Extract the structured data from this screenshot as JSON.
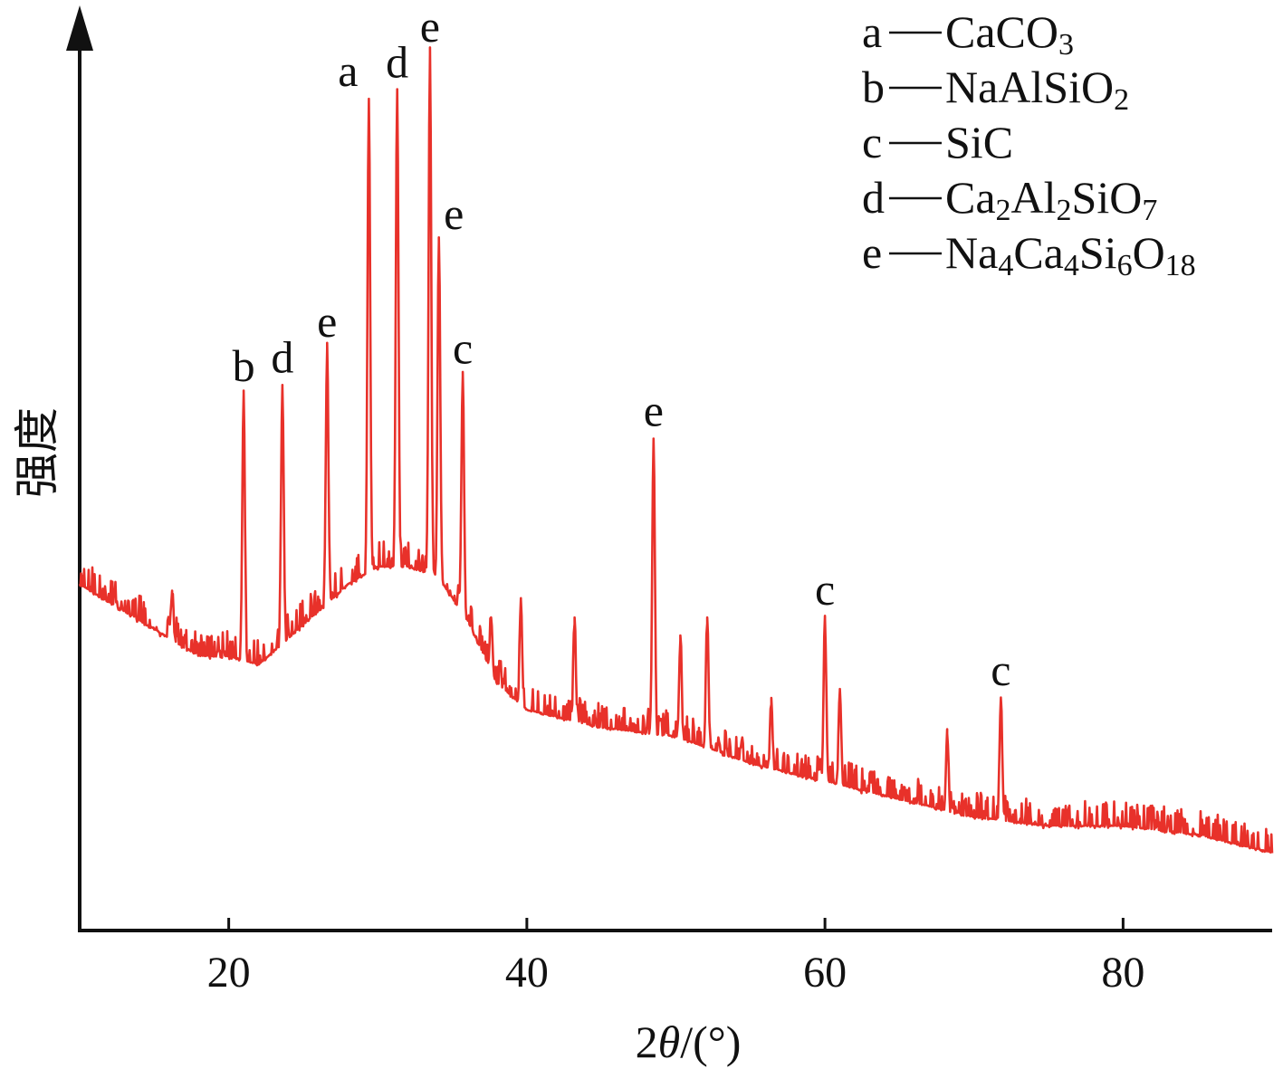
{
  "chart_data": {
    "type": "line",
    "xlabel": "2θ/(°)",
    "xlabel_parts": {
      "prefix": "2",
      "theta": "θ",
      "suffix": "/(°)"
    },
    "ylabel": "强度",
    "xlim": [
      10,
      90
    ],
    "ylim": [
      0,
      100
    ],
    "xticks": [
      20,
      40,
      60,
      80
    ],
    "grid": false,
    "line_color": "#e8312a",
    "legend_position": "top-right",
    "legend": [
      {
        "code": "a",
        "text": "a—CaCO3",
        "parts": [
          [
            "CaCO",
            false
          ],
          [
            "3",
            true
          ]
        ]
      },
      {
        "code": "b",
        "text": "b—NaAlSiO2",
        "parts": [
          [
            "NaAlSiO",
            false
          ],
          [
            "2",
            true
          ]
        ]
      },
      {
        "code": "c",
        "text": "c—SiC",
        "parts": [
          [
            "SiC",
            false
          ]
        ]
      },
      {
        "code": "d",
        "text": "d—Ca2Al2SiO7",
        "parts": [
          [
            "Ca",
            false
          ],
          [
            "2",
            true
          ],
          [
            "Al",
            false
          ],
          [
            "2",
            true
          ],
          [
            "SiO",
            false
          ],
          [
            "7",
            true
          ]
        ]
      },
      {
        "code": "e",
        "text": "e—Na4Ca4Si6O18",
        "parts": [
          [
            "Na",
            false
          ],
          [
            "4",
            true
          ],
          [
            "Ca",
            false
          ],
          [
            "4",
            true
          ],
          [
            "Si",
            false
          ],
          [
            "6",
            true
          ],
          [
            "O",
            false
          ],
          [
            "18",
            true
          ]
        ]
      }
    ],
    "baseline": [
      [
        10,
        38
      ],
      [
        14,
        34
      ],
      [
        18,
        30
      ],
      [
        20,
        30
      ],
      [
        22,
        29
      ],
      [
        24,
        32
      ],
      [
        26,
        35
      ],
      [
        28,
        38
      ],
      [
        30,
        40
      ],
      [
        32,
        40
      ],
      [
        34,
        39
      ],
      [
        36,
        34
      ],
      [
        38,
        27
      ],
      [
        40,
        24
      ],
      [
        45,
        22
      ],
      [
        50,
        21
      ],
      [
        55,
        18
      ],
      [
        60,
        16
      ],
      [
        65,
        14
      ],
      [
        70,
        12
      ],
      [
        75,
        11
      ],
      [
        80,
        11
      ],
      [
        85,
        10
      ],
      [
        90,
        8
      ]
    ],
    "peaks": [
      {
        "x": 21.0,
        "y": 60,
        "label": "b"
      },
      {
        "x": 23.6,
        "y": 61,
        "label": "d"
      },
      {
        "x": 26.6,
        "y": 65,
        "label": "e"
      },
      {
        "x": 29.4,
        "y": 93,
        "label": "a",
        "label_x": 28.0
      },
      {
        "x": 31.3,
        "y": 94,
        "label": "d"
      },
      {
        "x": 33.5,
        "y": 98,
        "label": "e"
      },
      {
        "x": 34.1,
        "y": 77,
        "label": "e",
        "label_x": 35.1
      },
      {
        "x": 35.7,
        "y": 62,
        "label": "c"
      },
      {
        "x": 48.5,
        "y": 55,
        "label": "e"
      },
      {
        "x": 60.0,
        "y": 35,
        "label": "c"
      },
      {
        "x": 71.8,
        "y": 26,
        "label": "c"
      }
    ],
    "minor_peaks": [
      {
        "x": 16.2,
        "y": 38
      },
      {
        "x": 37.6,
        "y": 35
      },
      {
        "x": 39.6,
        "y": 37
      },
      {
        "x": 43.2,
        "y": 35
      },
      {
        "x": 50.3,
        "y": 33
      },
      {
        "x": 52.1,
        "y": 35
      },
      {
        "x": 56.4,
        "y": 26
      },
      {
        "x": 61.0,
        "y": 27
      },
      {
        "x": 68.2,
        "y": 22
      }
    ]
  }
}
